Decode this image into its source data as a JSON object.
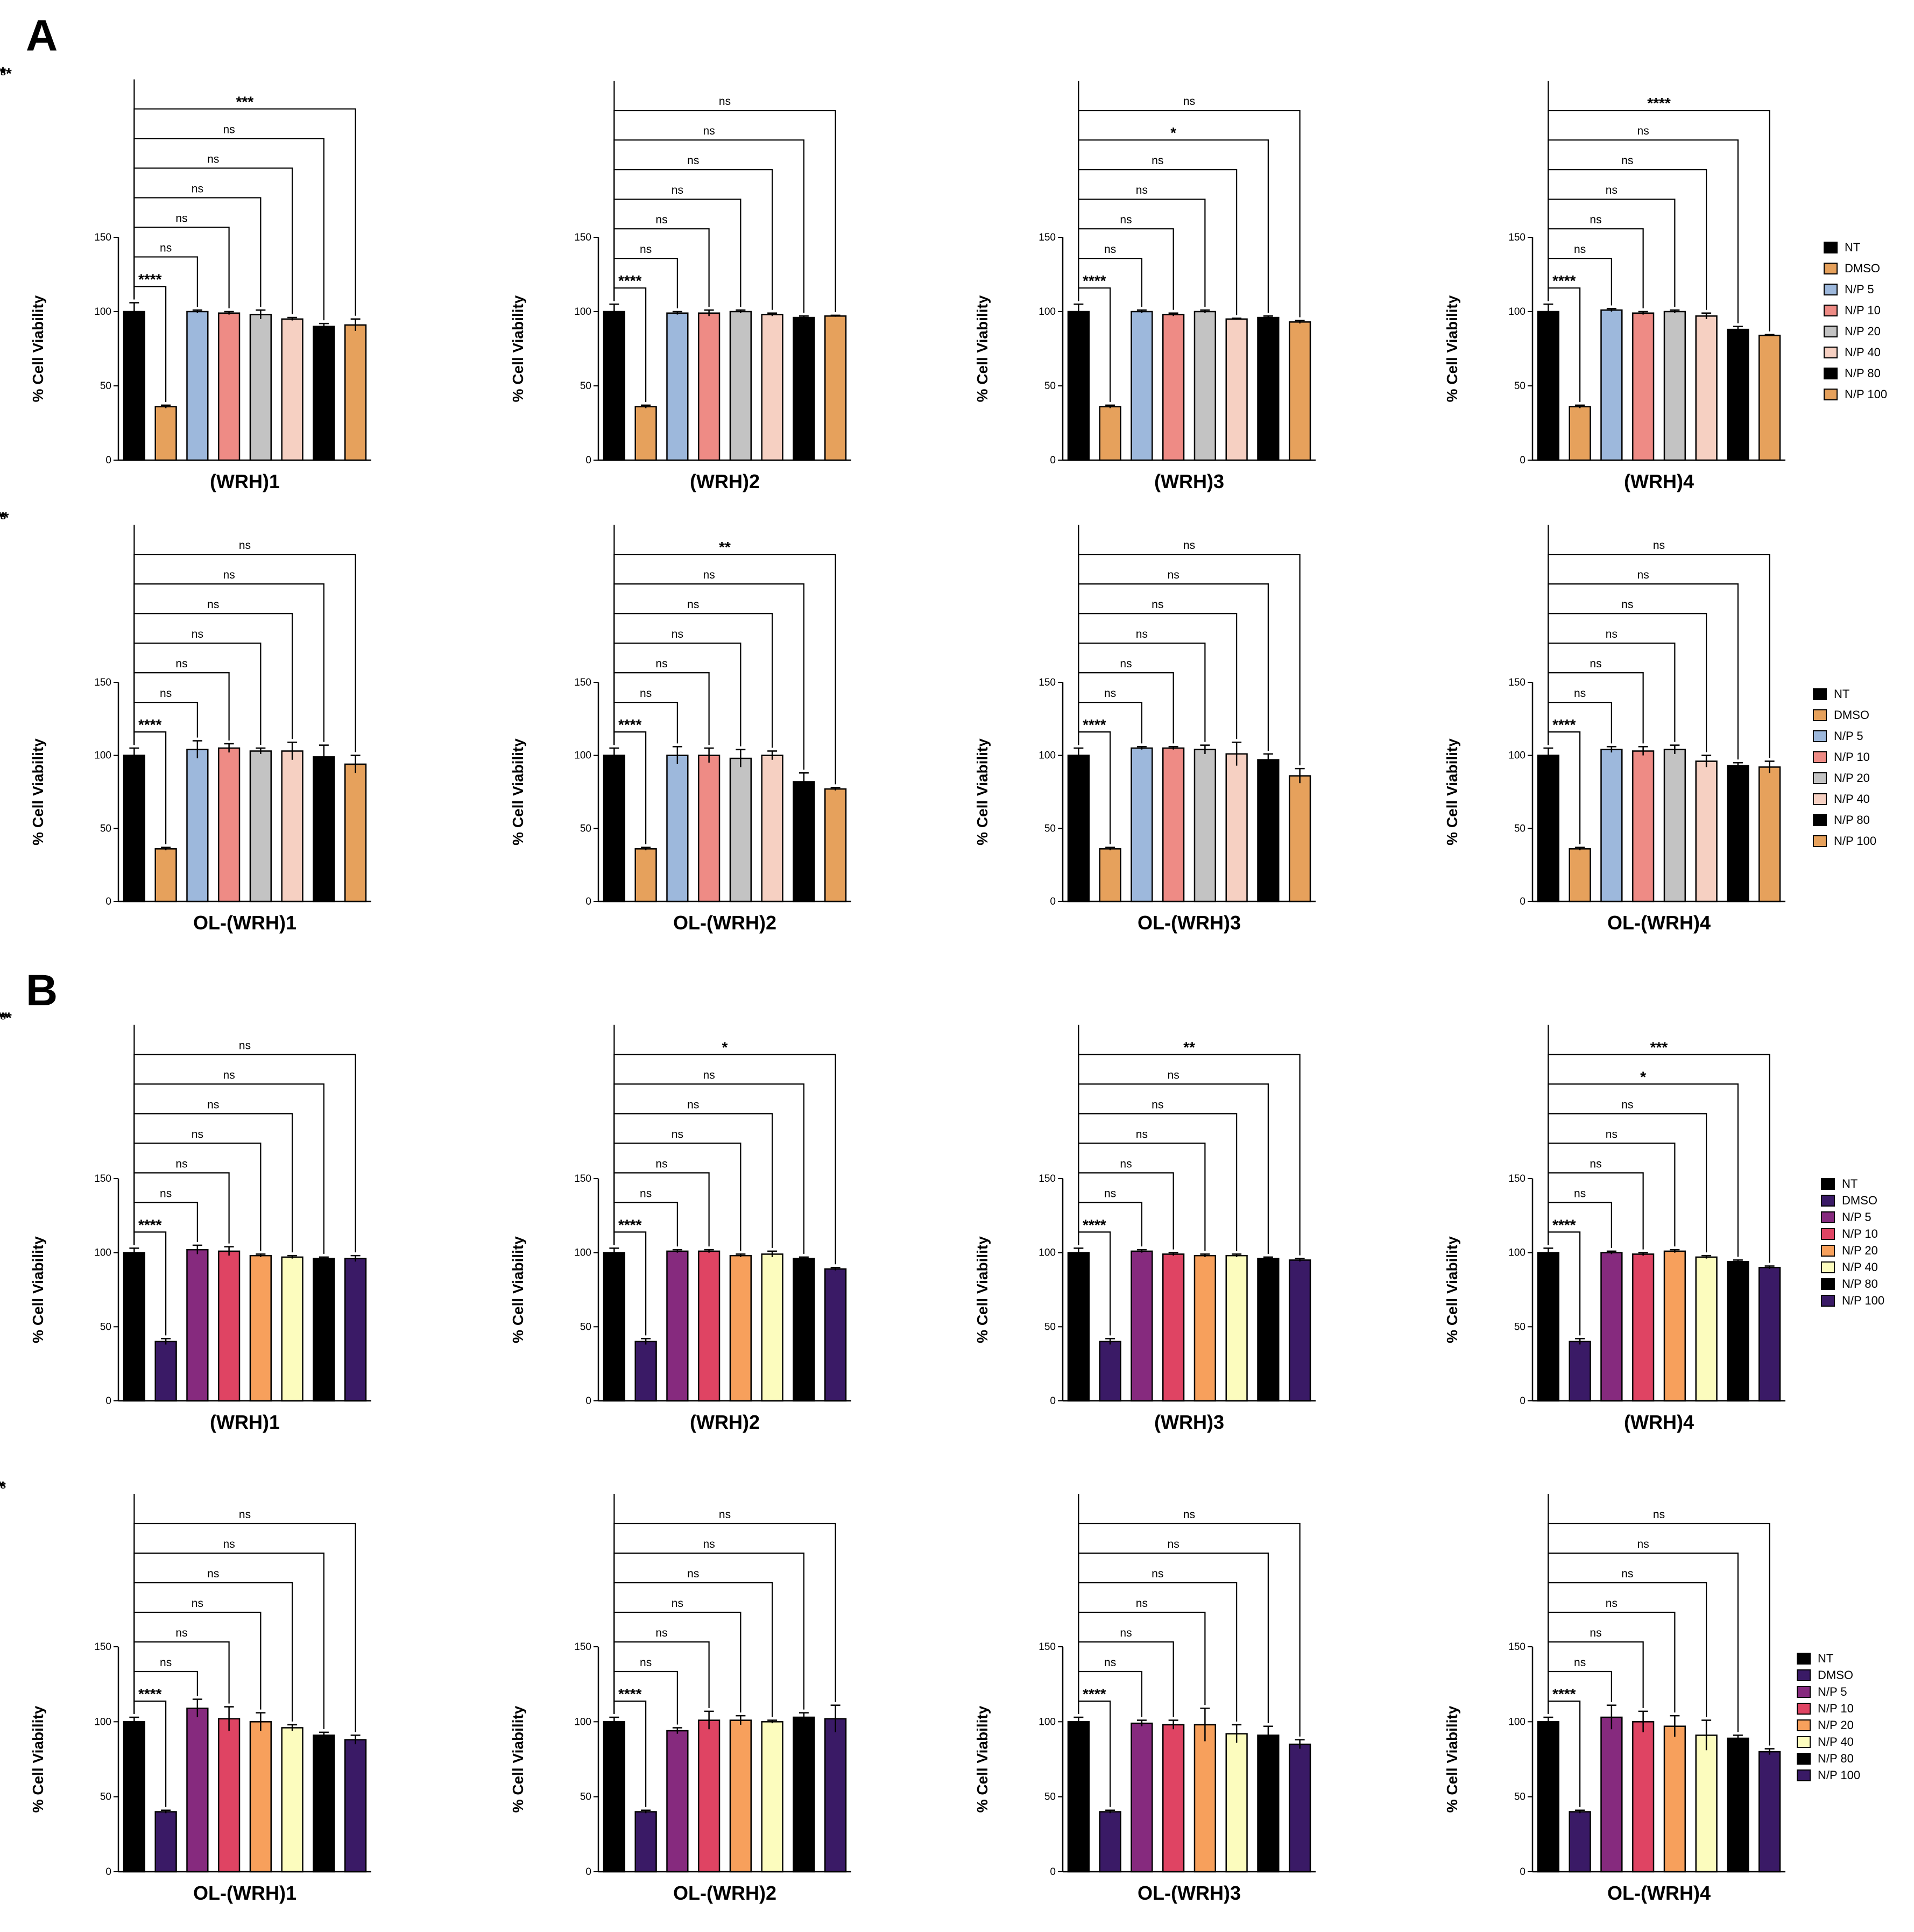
{
  "panels": [
    {
      "label": "A"
    },
    {
      "label": "B"
    }
  ],
  "legends": [
    {
      "entries": [
        {
          "name": "NT",
          "color": "#000000"
        },
        {
          "name": "DMSO",
          "color": "#E6A15C"
        },
        {
          "name": "N/P 5",
          "color": "#9DB8DC"
        },
        {
          "name": "N/P 10",
          "color": "#EE8B85"
        },
        {
          "name": "N/P 20",
          "color": "#C3C3C3"
        },
        {
          "name": "N/P 40",
          "color": "#F6D0C2"
        },
        {
          "name": "N/P 80",
          "color": "#000000"
        },
        {
          "name": "N/P 100",
          "color": "#E6A15C"
        }
      ]
    },
    {
      "entries": [
        {
          "name": "NT",
          "color": "#000000"
        },
        {
          "name": "DMSO",
          "color": "#E6A15C"
        },
        {
          "name": "N/P 5",
          "color": "#9DB8DC"
        },
        {
          "name": "N/P 10",
          "color": "#EE8B85"
        },
        {
          "name": "N/P 20",
          "color": "#C3C3C3"
        },
        {
          "name": "N/P 40",
          "color": "#F6D0C2"
        },
        {
          "name": "N/P 80",
          "color": "#000000"
        },
        {
          "name": "N/P 100",
          "color": "#E6A15C"
        }
      ]
    },
    {
      "entries": [
        {
          "name": "NT",
          "color": "#000000"
        },
        {
          "name": "DMSO",
          "color": "#3A1A66"
        },
        {
          "name": "N/P 5",
          "color": "#862A7E"
        },
        {
          "name": "N/P 10",
          "color": "#DF4463"
        },
        {
          "name": "N/P 20",
          "color": "#F7A05C"
        },
        {
          "name": "N/P 40",
          "color": "#FCFCBE"
        },
        {
          "name": "N/P 80",
          "color": "#000000"
        },
        {
          "name": "N/P 100",
          "color": "#3A1A66"
        }
      ]
    },
    {
      "entries": [
        {
          "name": "NT",
          "color": "#000000"
        },
        {
          "name": "DMSO",
          "color": "#3A1A66"
        },
        {
          "name": "N/P 5",
          "color": "#862A7E"
        },
        {
          "name": "N/P 10",
          "color": "#DF4463"
        },
        {
          "name": "N/P 20",
          "color": "#F7A05C"
        },
        {
          "name": "N/P 40",
          "color": "#FCFCBE"
        },
        {
          "name": "N/P 80",
          "color": "#000000"
        },
        {
          "name": "N/P 100",
          "color": "#3A1A66"
        }
      ]
    }
  ],
  "chart_data": [
    {
      "type": "bar",
      "panel": "A",
      "title": "(WRH)1",
      "ylabel": "% Cell Viability",
      "ylim": [
        0,
        150
      ],
      "yticks": [
        0,
        50,
        100,
        150
      ],
      "categories": [
        "NT",
        "DMSO",
        "N/P 5",
        "N/P 10",
        "N/P 20",
        "N/P 40",
        "N/P 80",
        "N/P 100"
      ],
      "colors": [
        "#000000",
        "#E6A15C",
        "#9DB8DC",
        "#EE8B85",
        "#C3C3C3",
        "#F6D0C2",
        "#000000",
        "#E6A15C"
      ],
      "values": [
        100,
        36,
        100,
        99,
        98,
        95,
        90,
        91
      ],
      "errors": [
        6,
        1,
        1,
        1,
        3,
        1,
        2,
        4
      ],
      "significance": [
        "****",
        "ns",
        "ns",
        "ns",
        "ns",
        "ns",
        "***",
        "**"
      ]
    },
    {
      "type": "bar",
      "panel": "A",
      "title": "(WRH)2",
      "ylabel": "% Cell Viability",
      "ylim": [
        0,
        150
      ],
      "yticks": [
        0,
        50,
        100,
        150
      ],
      "categories": [
        "NT",
        "DMSO",
        "N/P 5",
        "N/P 10",
        "N/P 20",
        "N/P 40",
        "N/P 80",
        "N/P 100"
      ],
      "colors": [
        "#000000",
        "#E6A15C",
        "#9DB8DC",
        "#EE8B85",
        "#C3C3C3",
        "#F6D0C2",
        "#000000",
        "#E6A15C"
      ],
      "values": [
        100,
        36,
        99,
        99,
        100,
        98,
        96,
        97
      ],
      "errors": [
        5,
        1,
        1,
        2,
        1,
        1,
        1,
        0.5
      ],
      "significance": [
        "****",
        "ns",
        "ns",
        "ns",
        "ns",
        "ns",
        "ns",
        "ns"
      ]
    },
    {
      "type": "bar",
      "panel": "A",
      "title": "(WRH)3",
      "ylabel": "% Cell Viability",
      "ylim": [
        0,
        150
      ],
      "yticks": [
        0,
        50,
        100,
        150
      ],
      "categories": [
        "NT",
        "DMSO",
        "N/P 5",
        "N/P 10",
        "N/P 20",
        "N/P 40",
        "N/P 80",
        "N/P 100"
      ],
      "colors": [
        "#000000",
        "#E6A15C",
        "#9DB8DC",
        "#EE8B85",
        "#C3C3C3",
        "#F6D0C2",
        "#000000",
        "#E6A15C"
      ],
      "values": [
        100,
        36,
        100,
        98,
        100,
        95,
        96,
        93
      ],
      "errors": [
        5,
        1,
        1,
        1,
        1,
        0.5,
        1,
        1
      ],
      "significance": [
        "****",
        "ns",
        "ns",
        "ns",
        "ns",
        "*",
        "ns",
        "**"
      ]
    },
    {
      "type": "bar",
      "panel": "A",
      "title": "(WRH)4",
      "ylabel": "% Cell Viability",
      "ylim": [
        0,
        150
      ],
      "yticks": [
        0,
        50,
        100,
        150
      ],
      "categories": [
        "NT",
        "DMSO",
        "N/P 5",
        "N/P 10",
        "N/P 20",
        "N/P 40",
        "N/P 80",
        "N/P 100"
      ],
      "colors": [
        "#000000",
        "#E6A15C",
        "#9DB8DC",
        "#EE8B85",
        "#C3C3C3",
        "#F6D0C2",
        "#000000",
        "#E6A15C"
      ],
      "values": [
        100,
        36,
        101,
        99,
        100,
        97,
        88,
        84
      ],
      "errors": [
        5,
        1,
        1,
        1,
        1,
        2,
        2,
        0.5
      ],
      "significance": [
        "****",
        "ns",
        "ns",
        "ns",
        "ns",
        "ns",
        "****",
        "****"
      ]
    },
    {
      "type": "bar",
      "panel": "A",
      "title": "OL-(WRH)1",
      "ylabel": "% Cell Viability",
      "ylim": [
        0,
        150
      ],
      "yticks": [
        0,
        50,
        100,
        150
      ],
      "categories": [
        "NT",
        "DMSO",
        "N/P 5",
        "N/P 10",
        "N/P 20",
        "N/P 40",
        "N/P 80",
        "N/P 100"
      ],
      "colors": [
        "#000000",
        "#E6A15C",
        "#9DB8DC",
        "#EE8B85",
        "#C3C3C3",
        "#F6D0C2",
        "#000000",
        "#E6A15C"
      ],
      "values": [
        100,
        36,
        104,
        105,
        103,
        103,
        99,
        94
      ],
      "errors": [
        5,
        1,
        6,
        3,
        2,
        6,
        8,
        6
      ],
      "significance": [
        "****",
        "ns",
        "ns",
        "ns",
        "ns",
        "ns",
        "ns",
        "ns"
      ]
    },
    {
      "type": "bar",
      "panel": "A",
      "title": "OL-(WRH)2",
      "ylabel": "% Cell Viability",
      "ylim": [
        0,
        150
      ],
      "yticks": [
        0,
        50,
        100,
        150
      ],
      "categories": [
        "NT",
        "DMSO",
        "N/P 5",
        "N/P 10",
        "N/P 20",
        "N/P 40",
        "N/P 80",
        "N/P 100"
      ],
      "colors": [
        "#000000",
        "#E6A15C",
        "#9DB8DC",
        "#EE8B85",
        "#C3C3C3",
        "#F6D0C2",
        "#000000",
        "#E6A15C"
      ],
      "values": [
        100,
        36,
        100,
        100,
        98,
        100,
        82,
        77
      ],
      "errors": [
        5,
        1,
        6,
        5,
        6,
        3,
        6,
        1
      ],
      "significance": [
        "****",
        "ns",
        "ns",
        "ns",
        "ns",
        "ns",
        "**",
        "***"
      ]
    },
    {
      "type": "bar",
      "panel": "A",
      "title": "OL-(WRH)3",
      "ylabel": "% Cell Viability",
      "ylim": [
        0,
        150
      ],
      "yticks": [
        0,
        50,
        100,
        150
      ],
      "categories": [
        "NT",
        "DMSO",
        "N/P 5",
        "N/P 10",
        "N/P 20",
        "N/P 40",
        "N/P 80",
        "N/P 100"
      ],
      "colors": [
        "#000000",
        "#E6A15C",
        "#9DB8DC",
        "#EE8B85",
        "#C3C3C3",
        "#F6D0C2",
        "#000000",
        "#E6A15C"
      ],
      "values": [
        100,
        36,
        105,
        105,
        104,
        101,
        97,
        86
      ],
      "errors": [
        5,
        1,
        1,
        1,
        3,
        8,
        4,
        5
      ],
      "significance": [
        "****",
        "ns",
        "ns",
        "ns",
        "ns",
        "ns",
        "ns",
        "**"
      ]
    },
    {
      "type": "bar",
      "panel": "A",
      "title": "OL-(WRH)4",
      "ylabel": "% Cell Viability",
      "ylim": [
        0,
        150
      ],
      "yticks": [
        0,
        50,
        100,
        150
      ],
      "categories": [
        "NT",
        "DMSO",
        "N/P 5",
        "N/P 10",
        "N/P 20",
        "N/P 40",
        "N/P 80",
        "N/P 100"
      ],
      "colors": [
        "#000000",
        "#E6A15C",
        "#9DB8DC",
        "#EE8B85",
        "#C3C3C3",
        "#F6D0C2",
        "#000000",
        "#E6A15C"
      ],
      "values": [
        100,
        36,
        104,
        103,
        104,
        96,
        93,
        92
      ],
      "errors": [
        5,
        1,
        2,
        3,
        3,
        4,
        2,
        4
      ],
      "significance": [
        "****",
        "ns",
        "ns",
        "ns",
        "ns",
        "ns",
        "ns",
        "ns"
      ]
    },
    {
      "type": "bar",
      "panel": "B",
      "title": "(WRH)1",
      "ylabel": "% Cell Viability",
      "ylim": [
        0,
        150
      ],
      "yticks": [
        0,
        50,
        100,
        150
      ],
      "categories": [
        "NT",
        "DMSO",
        "N/P 5",
        "N/P 10",
        "N/P 20",
        "N/P 40",
        "N/P 80",
        "N/P 100"
      ],
      "colors": [
        "#000000",
        "#3A1A66",
        "#862A7E",
        "#DF4463",
        "#F7A05C",
        "#FCFCBE",
        "#000000",
        "#3A1A66"
      ],
      "values": [
        100,
        40,
        102,
        101,
        98,
        97,
        96,
        96
      ],
      "errors": [
        3,
        2,
        3,
        3,
        1,
        1,
        1,
        2
      ],
      "significance": [
        "****",
        "ns",
        "ns",
        "ns",
        "ns",
        "ns",
        "ns",
        "ns"
      ]
    },
    {
      "type": "bar",
      "panel": "B",
      "title": "(WRH)2",
      "ylabel": "% Cell Viability",
      "ylim": [
        0,
        150
      ],
      "yticks": [
        0,
        50,
        100,
        150
      ],
      "categories": [
        "NT",
        "DMSO",
        "N/P 5",
        "N/P 10",
        "N/P 20",
        "N/P 40",
        "N/P 80",
        "N/P 100"
      ],
      "colors": [
        "#000000",
        "#3A1A66",
        "#862A7E",
        "#DF4463",
        "#F7A05C",
        "#FCFCBE",
        "#000000",
        "#3A1A66"
      ],
      "values": [
        100,
        40,
        101,
        101,
        98,
        99,
        96,
        89
      ],
      "errors": [
        3,
        2,
        1,
        1,
        1,
        2,
        1,
        1
      ],
      "significance": [
        "****",
        "ns",
        "ns",
        "ns",
        "ns",
        "ns",
        "*",
        "****"
      ]
    },
    {
      "type": "bar",
      "panel": "B",
      "title": "(WRH)3",
      "ylabel": "% Cell Viability",
      "ylim": [
        0,
        150
      ],
      "yticks": [
        0,
        50,
        100,
        150
      ],
      "categories": [
        "NT",
        "DMSO",
        "N/P 5",
        "N/P 10",
        "N/P 20",
        "N/P 40",
        "N/P 80",
        "N/P 100"
      ],
      "colors": [
        "#000000",
        "#3A1A66",
        "#862A7E",
        "#DF4463",
        "#F7A05C",
        "#FCFCBE",
        "#000000",
        "#3A1A66"
      ],
      "values": [
        100,
        40,
        101,
        99,
        98,
        98,
        96,
        95
      ],
      "errors": [
        3,
        2,
        1,
        1,
        1,
        1,
        1,
        1
      ],
      "significance": [
        "****",
        "ns",
        "ns",
        "ns",
        "ns",
        "ns",
        "**",
        "***"
      ]
    },
    {
      "type": "bar",
      "panel": "B",
      "title": "(WRH)4",
      "ylabel": "% Cell Viability",
      "ylim": [
        0,
        150
      ],
      "yticks": [
        0,
        50,
        100,
        150
      ],
      "categories": [
        "NT",
        "DMSO",
        "N/P 5",
        "N/P 10",
        "N/P 20",
        "N/P 40",
        "N/P 80",
        "N/P 100"
      ],
      "colors": [
        "#000000",
        "#3A1A66",
        "#862A7E",
        "#DF4463",
        "#F7A05C",
        "#FCFCBE",
        "#000000",
        "#3A1A66"
      ],
      "values": [
        100,
        40,
        100,
        99,
        101,
        97,
        94,
        90
      ],
      "errors": [
        3,
        2,
        1,
        1,
        1,
        1,
        1,
        1
      ],
      "significance": [
        "****",
        "ns",
        "ns",
        "ns",
        "ns",
        "*",
        "***",
        "****"
      ]
    },
    {
      "type": "bar",
      "panel": "B",
      "title": "OL-(WRH)1",
      "ylabel": "% Cell Viability",
      "ylim": [
        0,
        150
      ],
      "yticks": [
        0,
        50,
        100,
        150
      ],
      "categories": [
        "NT",
        "DMSO",
        "N/P 5",
        "N/P 10",
        "N/P 20",
        "N/P 40",
        "N/P 80",
        "N/P 100"
      ],
      "colors": [
        "#000000",
        "#3A1A66",
        "#862A7E",
        "#DF4463",
        "#F7A05C",
        "#FCFCBE",
        "#000000",
        "#3A1A66"
      ],
      "values": [
        100,
        40,
        109,
        102,
        100,
        96,
        91,
        88
      ],
      "errors": [
        3,
        1,
        6,
        8,
        6,
        2,
        2,
        3
      ],
      "significance": [
        "****",
        "ns",
        "ns",
        "ns",
        "ns",
        "ns",
        "ns",
        "*"
      ]
    },
    {
      "type": "bar",
      "panel": "B",
      "title": "OL-(WRH)2",
      "ylabel": "% Cell Viability",
      "ylim": [
        0,
        150
      ],
      "yticks": [
        0,
        50,
        100,
        150
      ],
      "categories": [
        "NT",
        "DMSO",
        "N/P 5",
        "N/P 10",
        "N/P 20",
        "N/P 40",
        "N/P 80",
        "N/P 100"
      ],
      "colors": [
        "#000000",
        "#3A1A66",
        "#862A7E",
        "#DF4463",
        "#F7A05C",
        "#FCFCBE",
        "#000000",
        "#3A1A66"
      ],
      "values": [
        100,
        40,
        94,
        101,
        101,
        100,
        103,
        102
      ],
      "errors": [
        3,
        1,
        2,
        6,
        3,
        1,
        3,
        9
      ],
      "significance": [
        "****",
        "ns",
        "ns",
        "ns",
        "ns",
        "ns",
        "ns",
        "ns"
      ]
    },
    {
      "type": "bar",
      "panel": "B",
      "title": "OL-(WRH)3",
      "ylabel": "% Cell Viability",
      "ylim": [
        0,
        150
      ],
      "yticks": [
        0,
        50,
        100,
        150
      ],
      "categories": [
        "NT",
        "DMSO",
        "N/P 5",
        "N/P 10",
        "N/P 20",
        "N/P 40",
        "N/P 80",
        "N/P 100"
      ],
      "colors": [
        "#000000",
        "#3A1A66",
        "#862A7E",
        "#DF4463",
        "#F7A05C",
        "#FCFCBE",
        "#000000",
        "#3A1A66"
      ],
      "values": [
        100,
        40,
        99,
        98,
        98,
        92,
        91,
        85
      ],
      "errors": [
        3,
        1,
        2,
        3,
        11,
        6,
        6,
        3
      ],
      "significance": [
        "****",
        "ns",
        "ns",
        "ns",
        "ns",
        "ns",
        "ns",
        "*"
      ]
    },
    {
      "type": "bar",
      "panel": "B",
      "title": "OL-(WRH)4",
      "ylabel": "% Cell Viability",
      "ylim": [
        0,
        150
      ],
      "yticks": [
        0,
        50,
        100,
        150
      ],
      "categories": [
        "NT",
        "DMSO",
        "N/P 5",
        "N/P 10",
        "N/P 20",
        "N/P 40",
        "N/P 80",
        "N/P 100"
      ],
      "colors": [
        "#000000",
        "#3A1A66",
        "#862A7E",
        "#DF4463",
        "#F7A05C",
        "#FCFCBE",
        "#000000",
        "#3A1A66"
      ],
      "values": [
        100,
        40,
        103,
        100,
        97,
        91,
        89,
        80
      ],
      "errors": [
        3,
        1,
        8,
        7,
        7,
        10,
        2,
        2
      ],
      "significance": [
        "****",
        "ns",
        "ns",
        "ns",
        "ns",
        "ns",
        "ns",
        "**"
      ]
    }
  ]
}
